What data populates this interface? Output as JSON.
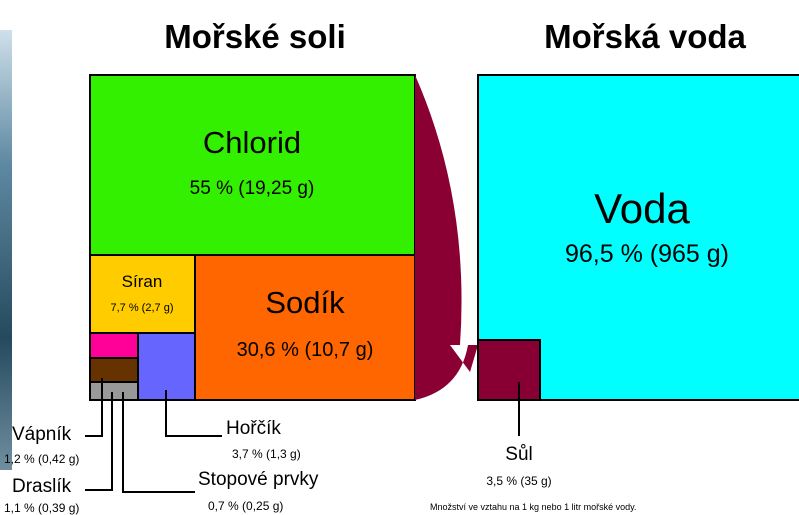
{
  "titles": {
    "salts": "Mořské soli",
    "water": "Mořská voda"
  },
  "salts": {
    "chlorid": {
      "name": "Chlorid",
      "amount": "55 % (19,25 g)"
    },
    "siran": {
      "name": "Síran",
      "amount": "7,7 % (2,7 g)"
    },
    "sodik": {
      "name": "Sodík",
      "amount": "30,6 % (10,7 g)"
    },
    "horcik": {
      "name": "Hořčík",
      "amount": "3,7 % (1,3 g)"
    },
    "vapnik": {
      "name": "Vápník",
      "amount": "1,2 % (0,42 g)"
    },
    "draslik": {
      "name": "Draslík",
      "amount": "1,1 % (0,39 g)"
    },
    "stopove": {
      "name": "Stopové prvky",
      "amount": "0,7 % (0,25 g)"
    }
  },
  "water": {
    "voda": {
      "name": "Voda",
      "amount": "96,5 % (965 g)"
    },
    "sul": {
      "name": "Sůl",
      "amount": "3,5 % (35 g)"
    }
  },
  "note": "Množství ve vztahu na 1 kg nebo 1 litr mořské vody."
}
